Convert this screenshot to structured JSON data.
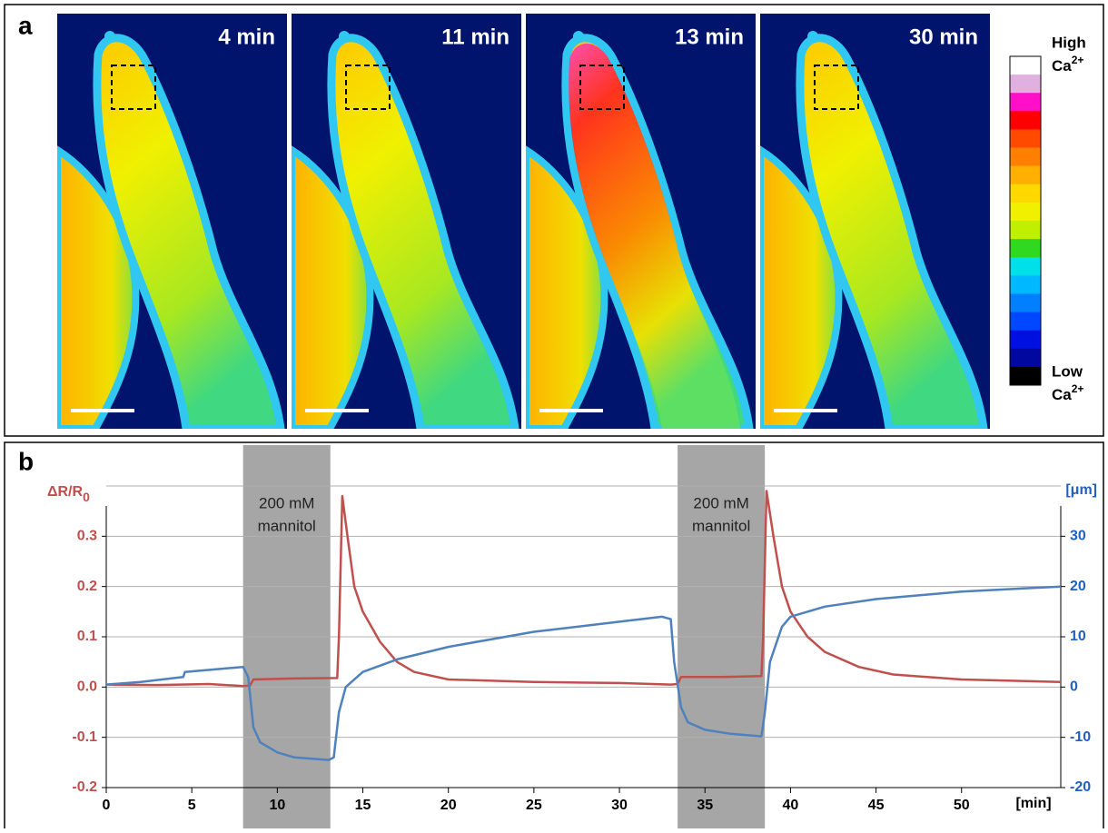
{
  "panel_a": {
    "label": "a",
    "images": [
      "4 min",
      "11 min",
      "13 min",
      "30 min"
    ],
    "colorbar": {
      "high": [
        "High",
        "Ca",
        "2+"
      ],
      "low": [
        "Low",
        "Ca",
        "2+"
      ],
      "colors": [
        "#ffffff",
        "#e0b0e0",
        "#ff10c8",
        "#ff0000",
        "#ff4a00",
        "#ff8000",
        "#ffb000",
        "#ffd800",
        "#f0f000",
        "#c0f000",
        "#30d820",
        "#00e0e8",
        "#00b8ff",
        "#0080ff",
        "#0048ff",
        "#0010e0",
        "#0008a0",
        "#000000"
      ]
    }
  },
  "chart_data": {
    "type": "line",
    "label": "b",
    "ylabel": "ΔR/R",
    "ylabel_sub": "0",
    "y2label": "[μm]",
    "xlabel": "[min]",
    "xlim": [
      0,
      55.8
    ],
    "xticks": [
      0,
      5,
      10,
      15,
      20,
      25,
      30,
      35,
      40,
      45,
      50
    ],
    "ylim": [
      -0.2,
      0.4
    ],
    "yticks": [
      -0.2,
      -0.1,
      {
        "value": 0,
        "label": "0.0"
      },
      0.1,
      0.2,
      0.3
    ],
    "y2lim": [
      -20,
      40
    ],
    "y2ticks": [
      -20,
      -10,
      0,
      10,
      20,
      30
    ],
    "grid": true,
    "shaded": [
      {
        "x": [
          8,
          13.1
        ],
        "label": [
          "200 mM",
          "mannitol"
        ]
      },
      {
        "x": [
          33.4,
          38.5
        ],
        "label": [
          "200 mM",
          "mannitol"
        ]
      }
    ],
    "series": [
      {
        "color": "#c0504d",
        "axis": "y",
        "x": [
          0,
          3,
          6,
          8,
          8.4,
          8.6,
          11,
          13.5,
          13.6,
          13.8,
          14.1,
          14.5,
          15,
          16,
          17,
          18,
          20,
          25,
          30,
          33,
          33.4,
          33.6,
          36,
          38.3,
          38.4,
          38.6,
          39,
          39.5,
          40,
          41,
          42,
          44,
          46,
          50,
          55.8
        ],
        "values": [
          0.005,
          0.004,
          0.006,
          0.002,
          0.003,
          0.015,
          0.017,
          0.018,
          0.1,
          0.38,
          0.3,
          0.2,
          0.15,
          0.09,
          0.05,
          0.03,
          0.015,
          0.01,
          0.008,
          0.005,
          0.006,
          0.02,
          0.02,
          0.022,
          0.1,
          0.39,
          0.3,
          0.2,
          0.15,
          0.1,
          0.07,
          0.04,
          0.025,
          0.015,
          0.01
        ]
      },
      {
        "color": "#4f81bd",
        "axis": "y2",
        "x": [
          0,
          2,
          4.5,
          4.6,
          8,
          8.3,
          8.6,
          9,
          10,
          11,
          13,
          13.3,
          13.6,
          14,
          15,
          17,
          20,
          25,
          30,
          32.5,
          33,
          33.2,
          33.6,
          34,
          35,
          36.5,
          38.3,
          38.5,
          38.8,
          39.5,
          40,
          42,
          45,
          50,
          55.8
        ],
        "values": [
          0.5,
          1,
          2,
          3,
          4,
          2,
          -8,
          -11,
          -13,
          -14,
          -14.5,
          -14,
          -5,
          0,
          3,
          5.5,
          8,
          11,
          13,
          14,
          13.5,
          5,
          -4,
          -7,
          -8.5,
          -9.3,
          -9.8,
          -5,
          5,
          12,
          14,
          16,
          17.5,
          19,
          20
        ]
      }
    ]
  }
}
